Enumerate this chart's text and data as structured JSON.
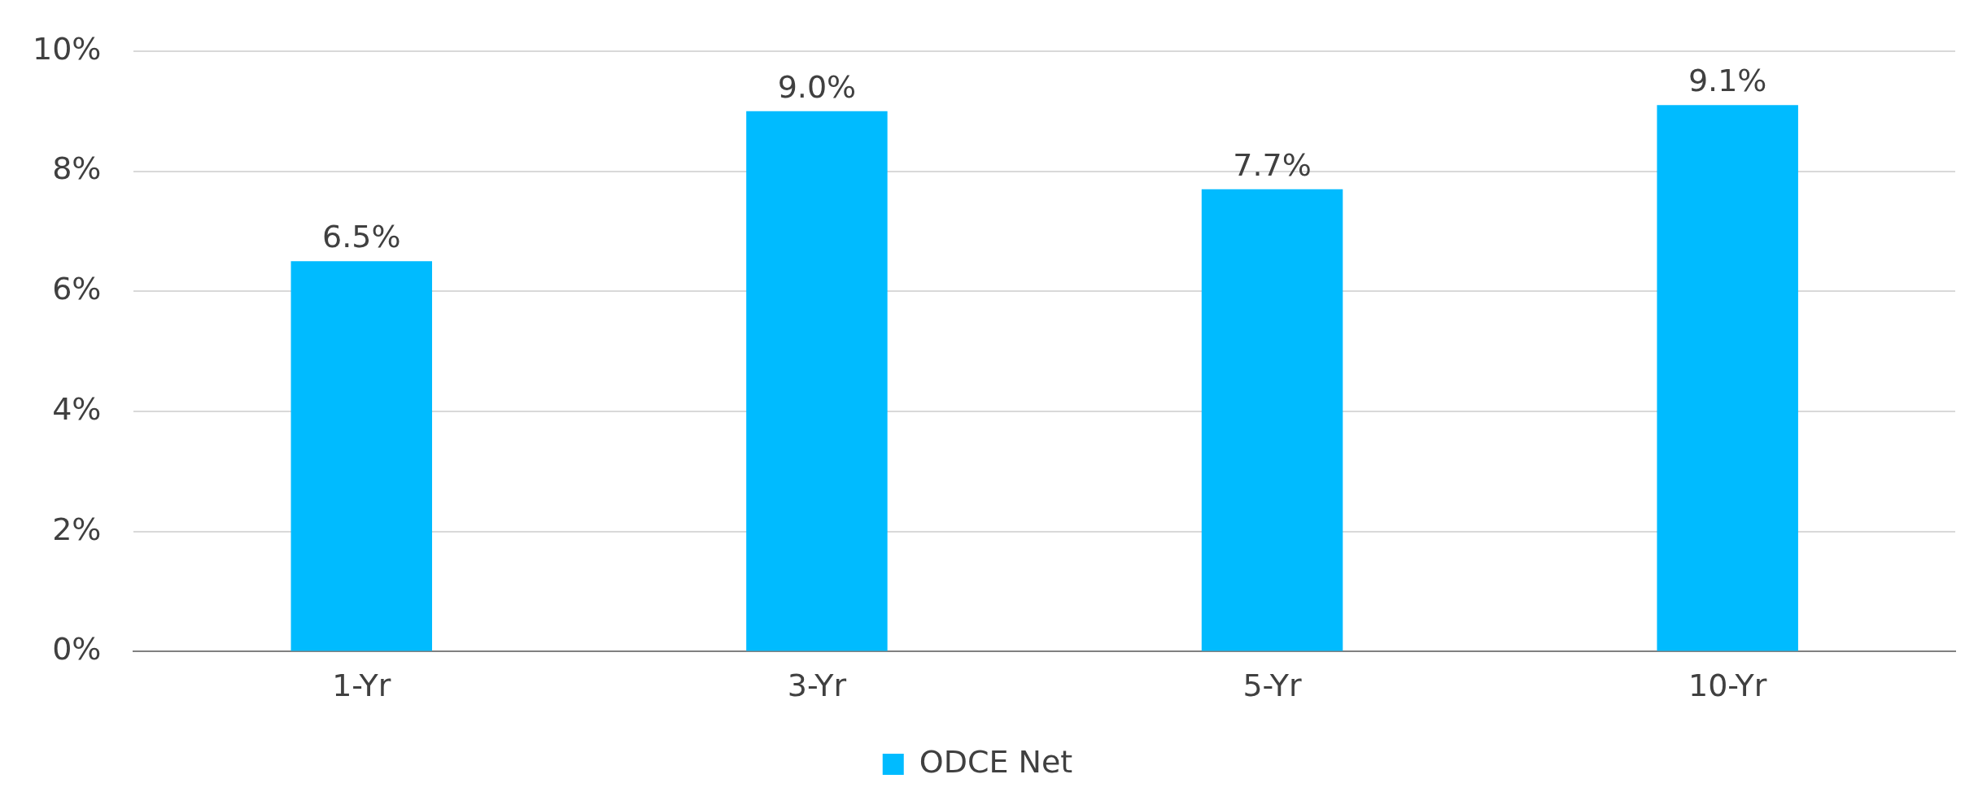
{
  "chart_data": {
    "type": "bar",
    "categories": [
      "1-Yr",
      "3-Yr",
      "5-Yr",
      "10-Yr"
    ],
    "series": [
      {
        "name": "ODCE Net",
        "color": "#00bbff",
        "values": [
          6.5,
          9.0,
          7.7,
          9.1
        ],
        "value_labels": [
          "6.5%",
          "9.0%",
          "7.7%",
          "9.1%"
        ]
      }
    ],
    "ylim": [
      0,
      10
    ],
    "yticks": [
      {
        "value": 0,
        "label": "0%"
      },
      {
        "value": 2,
        "label": "2%"
      },
      {
        "value": 4,
        "label": "4%"
      },
      {
        "value": 6,
        "label": "6%"
      },
      {
        "value": 8,
        "label": "8%"
      },
      {
        "value": 10,
        "label": "10%"
      }
    ],
    "grid": "y",
    "legend": "bottom"
  }
}
